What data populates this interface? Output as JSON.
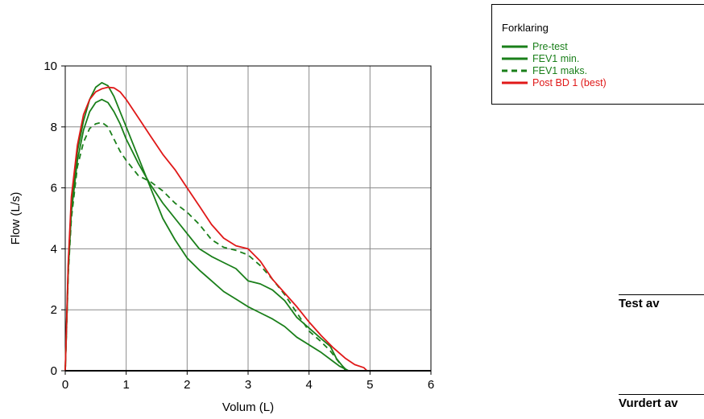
{
  "chart_data": {
    "type": "line",
    "xlabel": "Volum (L)",
    "ylabel": "Flow (L/s)",
    "xlim": [
      0,
      6
    ],
    "ylim": [
      0,
      10
    ],
    "x_ticks": [
      "0",
      "1",
      "2",
      "3",
      "4",
      "5",
      "6"
    ],
    "y_ticks": [
      "0",
      "2",
      "4",
      "6",
      "8",
      "10"
    ],
    "grid": true,
    "legend_position": "top-right",
    "legend_title": "Forklaring",
    "series": [
      {
        "name": "Pre-test",
        "color": "#1a7f1a",
        "dash": "solid",
        "points": [
          [
            0,
            0
          ],
          [
            0.05,
            3.5
          ],
          [
            0.1,
            5.5
          ],
          [
            0.2,
            7.2
          ],
          [
            0.3,
            8.2
          ],
          [
            0.4,
            8.9
          ],
          [
            0.5,
            9.3
          ],
          [
            0.6,
            9.45
          ],
          [
            0.7,
            9.35
          ],
          [
            0.8,
            9.0
          ],
          [
            0.9,
            8.5
          ],
          [
            1.0,
            8.0
          ],
          [
            1.2,
            7.0
          ],
          [
            1.4,
            6.0
          ],
          [
            1.6,
            5.0
          ],
          [
            1.8,
            4.3
          ],
          [
            2.0,
            3.7
          ],
          [
            2.2,
            3.3
          ],
          [
            2.4,
            2.95
          ],
          [
            2.6,
            2.6
          ],
          [
            2.8,
            2.35
          ],
          [
            3.0,
            2.1
          ],
          [
            3.2,
            1.9
          ],
          [
            3.4,
            1.7
          ],
          [
            3.6,
            1.45
          ],
          [
            3.8,
            1.1
          ],
          [
            4.0,
            0.85
          ],
          [
            4.2,
            0.6
          ],
          [
            4.4,
            0.3
          ],
          [
            4.5,
            0.15
          ],
          [
            4.6,
            0.05
          ],
          [
            4.65,
            0
          ]
        ]
      },
      {
        "name": "FEV1 min.",
        "color": "#1a7f1a",
        "dash": "solid",
        "points": [
          [
            0,
            0
          ],
          [
            0.05,
            3.3
          ],
          [
            0.1,
            5.2
          ],
          [
            0.2,
            6.9
          ],
          [
            0.3,
            7.9
          ],
          [
            0.4,
            8.5
          ],
          [
            0.5,
            8.8
          ],
          [
            0.6,
            8.9
          ],
          [
            0.7,
            8.8
          ],
          [
            0.8,
            8.5
          ],
          [
            0.9,
            8.1
          ],
          [
            1.0,
            7.6
          ],
          [
            1.2,
            6.8
          ],
          [
            1.4,
            6.1
          ],
          [
            1.6,
            5.5
          ],
          [
            1.8,
            5.0
          ],
          [
            2.0,
            4.5
          ],
          [
            2.2,
            4.0
          ],
          [
            2.4,
            3.75
          ],
          [
            2.6,
            3.55
          ],
          [
            2.8,
            3.35
          ],
          [
            3.0,
            2.95
          ],
          [
            3.2,
            2.85
          ],
          [
            3.4,
            2.65
          ],
          [
            3.6,
            2.3
          ],
          [
            3.8,
            1.75
          ],
          [
            4.0,
            1.4
          ],
          [
            4.2,
            1.05
          ],
          [
            4.35,
            0.8
          ],
          [
            4.45,
            0.4
          ],
          [
            4.55,
            0.15
          ],
          [
            4.6,
            0
          ]
        ]
      },
      {
        "name": "FEV1 maks.",
        "color": "#1a7f1a",
        "dash": "dashed",
        "points": [
          [
            0,
            0
          ],
          [
            0.05,
            3.2
          ],
          [
            0.1,
            5.0
          ],
          [
            0.2,
            6.7
          ],
          [
            0.3,
            7.5
          ],
          [
            0.4,
            7.95
          ],
          [
            0.5,
            8.1
          ],
          [
            0.6,
            8.15
          ],
          [
            0.7,
            8.0
          ],
          [
            0.8,
            7.6
          ],
          [
            0.9,
            7.2
          ],
          [
            1.0,
            6.9
          ],
          [
            1.2,
            6.4
          ],
          [
            1.4,
            6.2
          ],
          [
            1.6,
            5.9
          ],
          [
            1.8,
            5.5
          ],
          [
            2.0,
            5.2
          ],
          [
            2.2,
            4.8
          ],
          [
            2.4,
            4.3
          ],
          [
            2.6,
            4.05
          ],
          [
            2.8,
            3.95
          ],
          [
            3.0,
            3.8
          ],
          [
            3.2,
            3.45
          ],
          [
            3.4,
            3.0
          ],
          [
            3.6,
            2.5
          ],
          [
            3.8,
            1.9
          ],
          [
            4.0,
            1.3
          ],
          [
            4.2,
            0.95
          ],
          [
            4.35,
            0.65
          ],
          [
            4.5,
            0.25
          ],
          [
            4.6,
            0.05
          ],
          [
            4.65,
            0
          ]
        ]
      },
      {
        "name": "Post BD 1 (best)",
        "color": "#e01818",
        "dash": "solid",
        "points": [
          [
            0,
            0
          ],
          [
            0.05,
            3.6
          ],
          [
            0.1,
            5.7
          ],
          [
            0.2,
            7.4
          ],
          [
            0.3,
            8.4
          ],
          [
            0.4,
            8.9
          ],
          [
            0.5,
            9.15
          ],
          [
            0.6,
            9.25
          ],
          [
            0.7,
            9.3
          ],
          [
            0.8,
            9.28
          ],
          [
            0.9,
            9.15
          ],
          [
            1.0,
            8.9
          ],
          [
            1.2,
            8.3
          ],
          [
            1.4,
            7.7
          ],
          [
            1.6,
            7.1
          ],
          [
            1.8,
            6.6
          ],
          [
            2.0,
            6.0
          ],
          [
            2.2,
            5.4
          ],
          [
            2.4,
            4.8
          ],
          [
            2.6,
            4.35
          ],
          [
            2.8,
            4.1
          ],
          [
            3.0,
            4.0
          ],
          [
            3.2,
            3.6
          ],
          [
            3.4,
            3.0
          ],
          [
            3.6,
            2.55
          ],
          [
            3.8,
            2.1
          ],
          [
            4.0,
            1.6
          ],
          [
            4.2,
            1.15
          ],
          [
            4.4,
            0.75
          ],
          [
            4.6,
            0.4
          ],
          [
            4.75,
            0.2
          ],
          [
            4.9,
            0.1
          ],
          [
            4.95,
            0
          ]
        ]
      }
    ]
  },
  "signatures": {
    "test_label": "Test av",
    "reviewed_label": "Vurdert av"
  }
}
